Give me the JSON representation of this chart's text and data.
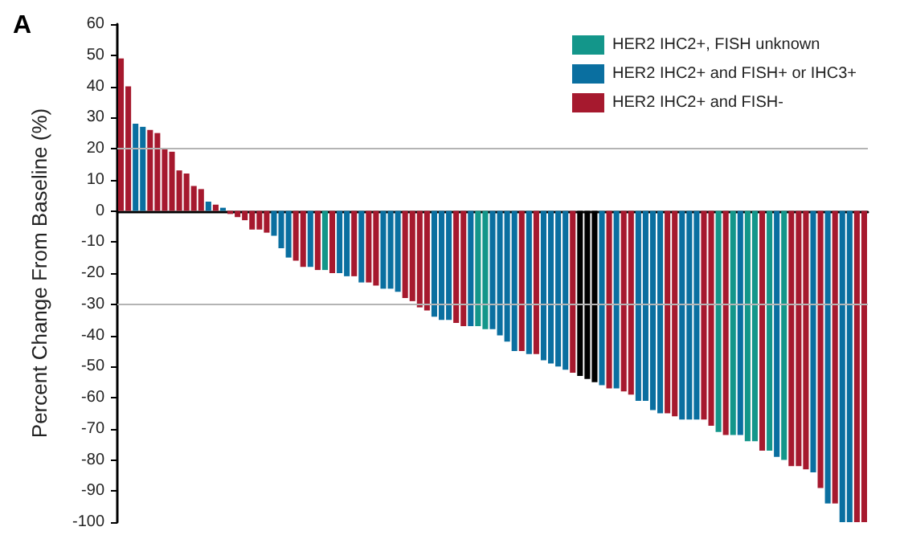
{
  "chart_data": {
    "type": "bar",
    "ylabel": "Percent Change From Baseline (%)",
    "annotations": [
      "A"
    ],
    "categories": [
      null,
      null,
      null,
      null,
      null,
      null,
      null,
      null,
      null,
      null,
      null,
      null,
      null,
      null,
      null,
      null,
      null,
      null,
      null,
      null,
      null,
      null,
      null,
      null,
      null,
      null,
      null,
      null,
      null,
      null,
      null,
      null,
      null,
      null,
      null,
      null,
      null,
      null,
      null,
      null,
      null,
      null,
      null,
      null,
      null,
      null,
      null,
      null,
      null,
      null,
      null,
      null,
      null,
      null,
      null,
      null,
      null,
      null,
      null,
      null,
      null,
      null,
      null,
      null,
      null,
      null,
      null,
      null,
      null,
      null,
      null,
      null,
      null,
      null,
      null,
      null,
      null,
      null,
      null,
      null,
      null,
      null,
      null,
      null,
      null,
      null,
      null,
      null,
      null,
      null,
      null,
      null,
      null,
      null,
      null,
      null,
      null,
      null,
      null,
      null,
      null,
      null,
      null
    ],
    "stacked": true,
    "series": [
      {
        "name": "HER2 IHC2+, FISH unknown",
        "color": "#13968a",
        "values": [
          null,
          null,
          null,
          null,
          null,
          null,
          null,
          null,
          null,
          null,
          null,
          null,
          null,
          null,
          null,
          null,
          null,
          null,
          null,
          null,
          null,
          null,
          null,
          null,
          null,
          null,
          null,
          null,
          -19,
          null,
          null,
          null,
          null,
          null,
          null,
          null,
          null,
          null,
          null,
          null,
          null,
          null,
          null,
          null,
          null,
          null,
          null,
          null,
          null,
          -37,
          -38,
          null,
          null,
          null,
          null,
          null,
          null,
          null,
          null,
          null,
          null,
          null,
          null,
          null,
          null,
          null,
          null,
          null,
          null,
          null,
          null,
          null,
          null,
          null,
          null,
          null,
          null,
          null,
          null,
          null,
          null,
          null,
          -71,
          null,
          -72,
          null,
          -74,
          -74,
          null,
          -77,
          null,
          -80,
          null,
          null,
          null,
          null,
          null,
          null,
          null,
          null,
          null,
          null,
          null
        ]
      },
      {
        "name": "HER2 IHC2+ and FISH+ or IHC3+",
        "color": "#0a6fa0",
        "values": [
          null,
          null,
          28,
          27,
          null,
          null,
          null,
          null,
          null,
          null,
          null,
          null,
          3,
          null,
          1,
          null,
          null,
          null,
          null,
          null,
          null,
          -8,
          -12,
          -15,
          null,
          null,
          -18,
          null,
          null,
          null,
          -20,
          -21,
          null,
          -23,
          null,
          null,
          -25,
          -25,
          -26,
          null,
          null,
          null,
          null,
          -34,
          -35,
          -35,
          null,
          null,
          -37,
          null,
          null,
          -38,
          -40,
          -42,
          -45,
          null,
          -46,
          null,
          -48,
          -49,
          -50,
          -51,
          null,
          null,
          null,
          null,
          -56,
          null,
          -57,
          null,
          null,
          -61,
          -61,
          -64,
          -65,
          null,
          null,
          -67,
          -67,
          -67,
          null,
          null,
          null,
          null,
          null,
          -72,
          null,
          null,
          null,
          null,
          -79,
          null,
          null,
          null,
          null,
          -84,
          null,
          -94,
          null,
          -100,
          -100,
          null,
          null
        ]
      },
      {
        "name": "HER2 IHC2+ and FISH-",
        "color": "#a6192e",
        "values": [
          49,
          40,
          null,
          null,
          26,
          25,
          20,
          19,
          13,
          12,
          8,
          7,
          null,
          2,
          null,
          -1,
          -2,
          -3,
          -6,
          -6,
          -7,
          null,
          null,
          null,
          -16,
          -18,
          null,
          -19,
          null,
          -20,
          null,
          null,
          -21,
          null,
          -23,
          -24,
          null,
          null,
          null,
          -28,
          -29,
          -31,
          -32,
          null,
          null,
          null,
          -36,
          -37,
          null,
          null,
          null,
          null,
          null,
          null,
          null,
          -45,
          null,
          -46,
          null,
          null,
          null,
          null,
          -52,
          null,
          null,
          null,
          null,
          -57,
          null,
          -58,
          -59,
          null,
          null,
          null,
          null,
          -65,
          -66,
          null,
          null,
          null,
          -67,
          -69,
          null,
          -72,
          null,
          null,
          null,
          null,
          -77,
          null,
          null,
          null,
          -82,
          -82,
          -83,
          null,
          -89,
          null,
          -94,
          null,
          null,
          -100,
          -100
        ]
      },
      {
        "color": "#000000",
        "values": [
          null,
          null,
          null,
          null,
          null,
          null,
          null,
          null,
          null,
          null,
          null,
          null,
          null,
          null,
          null,
          null,
          null,
          null,
          null,
          null,
          null,
          null,
          null,
          null,
          null,
          null,
          null,
          null,
          null,
          null,
          null,
          null,
          null,
          null,
          null,
          null,
          null,
          null,
          null,
          null,
          null,
          null,
          null,
          null,
          null,
          null,
          null,
          null,
          null,
          null,
          null,
          null,
          null,
          null,
          null,
          null,
          null,
          null,
          null,
          null,
          null,
          null,
          null,
          -53,
          -54,
          -55,
          null,
          null,
          null,
          null,
          null,
          null,
          null,
          null,
          null,
          null,
          null,
          null,
          null,
          null,
          null,
          null,
          null,
          null,
          null,
          null,
          null,
          null,
          null,
          null,
          null,
          null,
          null,
          null,
          null,
          null,
          null,
          null,
          null,
          null,
          null,
          null,
          null
        ]
      }
    ],
    "ylim": [
      -100,
      60
    ],
    "yticks": [
      -100,
      -90,
      -80,
      -70,
      -60,
      -50,
      -40,
      -30,
      -20,
      -10,
      0,
      10,
      20,
      30,
      40,
      50,
      60
    ],
    "ref_lines": [
      {
        "axis": "y",
        "value": 20,
        "color": "#b4b4b4"
      },
      {
        "axis": "y",
        "value": -30,
        "color": "#b4b4b4"
      }
    ],
    "legend": "top right",
    "grid": false
  }
}
